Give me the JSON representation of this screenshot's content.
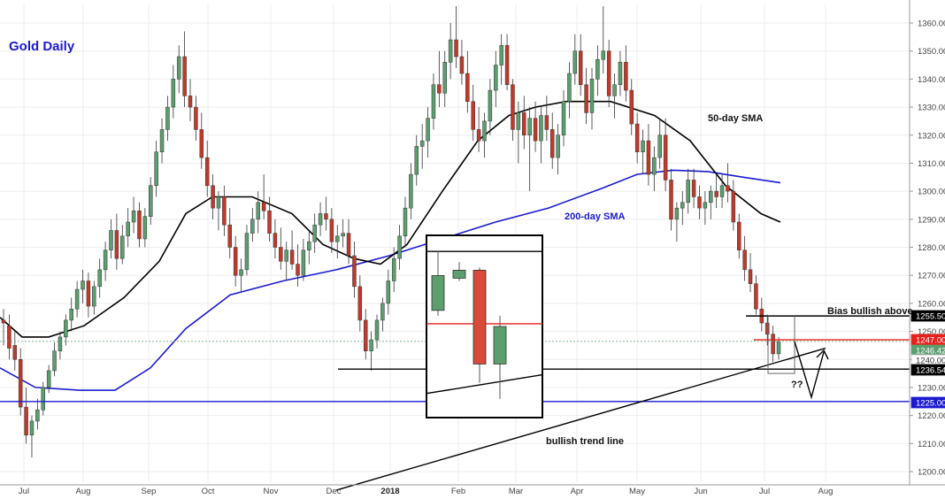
{
  "chart_data": {
    "type": "candlestick",
    "title": "Gold Daily",
    "ylim": [
      1195,
      1365
    ],
    "y_ticks": [
      1200,
      1210,
      1220,
      1230,
      1240,
      1250,
      1260,
      1270,
      1280,
      1290,
      1300,
      1310,
      1320,
      1330,
      1340,
      1350,
      1360
    ],
    "x_labels": [
      "Jul",
      "Aug",
      "Sep",
      "Oct",
      "Nov",
      "Dec",
      "2018",
      "Feb",
      "Mar",
      "Apr",
      "May",
      "Jun",
      "Jul",
      "Aug"
    ],
    "series": [
      {
        "name": "50-day SMA",
        "color": "#000000",
        "points": [
          [
            0,
            1255
          ],
          [
            25,
            1248
          ],
          [
            55,
            1248
          ],
          [
            95,
            1252
          ],
          [
            140,
            1262
          ],
          [
            180,
            1275
          ],
          [
            210,
            1292
          ],
          [
            240,
            1298
          ],
          [
            285,
            1298
          ],
          [
            330,
            1292
          ],
          [
            365,
            1281
          ],
          [
            400,
            1276
          ],
          [
            430,
            1274
          ],
          [
            460,
            1281
          ],
          [
            500,
            1300
          ],
          [
            540,
            1318
          ],
          [
            575,
            1327
          ],
          [
            605,
            1330
          ],
          [
            640,
            1332
          ],
          [
            690,
            1332
          ],
          [
            740,
            1327
          ],
          [
            780,
            1318
          ],
          [
            820,
            1302
          ],
          [
            860,
            1292
          ],
          [
            882,
            1289
          ]
        ]
      },
      {
        "name": "200-day SMA",
        "color": "#1a1ad0",
        "points": [
          [
            0,
            1237
          ],
          [
            40,
            1230
          ],
          [
            90,
            1229
          ],
          [
            130,
            1229
          ],
          [
            170,
            1237
          ],
          [
            210,
            1251
          ],
          [
            260,
            1263
          ],
          [
            320,
            1268
          ],
          [
            380,
            1272
          ],
          [
            440,
            1277
          ],
          [
            500,
            1283
          ],
          [
            560,
            1289
          ],
          [
            620,
            1294
          ],
          [
            680,
            1301
          ],
          [
            720,
            1306
          ],
          [
            760,
            1307.5
          ],
          [
            800,
            1307
          ],
          [
            840,
            1305
          ],
          [
            882,
            1303
          ]
        ]
      }
    ],
    "candles": [
      [
        1254,
        1258,
        1245,
        1253
      ],
      [
        1252,
        1256,
        1240,
        1244
      ],
      [
        1245,
        1250,
        1236,
        1240
      ],
      [
        1240,
        1244,
        1220,
        1223
      ],
      [
        1223,
        1230,
        1210,
        1213
      ],
      [
        1213,
        1220,
        1205,
        1218
      ],
      [
        1218,
        1226,
        1215,
        1222
      ],
      [
        1222,
        1232,
        1220,
        1230
      ],
      [
        1230,
        1238,
        1228,
        1236
      ],
      [
        1236,
        1246,
        1234,
        1243
      ],
      [
        1243,
        1250,
        1240,
        1248
      ],
      [
        1248,
        1256,
        1245,
        1254
      ],
      [
        1254,
        1262,
        1250,
        1258
      ],
      [
        1258,
        1268,
        1255,
        1265
      ],
      [
        1265,
        1272,
        1260,
        1268
      ],
      [
        1268,
        1271,
        1255,
        1259
      ],
      [
        1259,
        1268,
        1256,
        1266
      ],
      [
        1266,
        1276,
        1262,
        1272
      ],
      [
        1272,
        1282,
        1268,
        1279
      ],
      [
        1279,
        1290,
        1276,
        1286
      ],
      [
        1286,
        1292,
        1272,
        1276
      ],
      [
        1276,
        1288,
        1274,
        1284
      ],
      [
        1284,
        1294,
        1280,
        1289
      ],
      [
        1289,
        1298,
        1285,
        1293
      ],
      [
        1293,
        1296,
        1280,
        1283
      ],
      [
        1283,
        1294,
        1280,
        1291
      ],
      [
        1291,
        1305,
        1288,
        1302
      ],
      [
        1302,
        1318,
        1298,
        1314
      ],
      [
        1314,
        1326,
        1310,
        1322
      ],
      [
        1322,
        1334,
        1318,
        1330
      ],
      [
        1330,
        1345,
        1326,
        1340
      ],
      [
        1340,
        1352,
        1335,
        1348
      ],
      [
        1348,
        1357,
        1330,
        1334
      ],
      [
        1334,
        1340,
        1325,
        1330
      ],
      [
        1330,
        1334,
        1318,
        1322
      ],
      [
        1322,
        1328,
        1308,
        1312
      ],
      [
        1312,
        1318,
        1298,
        1302
      ],
      [
        1302,
        1306,
        1290,
        1294
      ],
      [
        1294,
        1300,
        1286,
        1298
      ],
      [
        1298,
        1302,
        1284,
        1288
      ],
      [
        1288,
        1294,
        1276,
        1280
      ],
      [
        1280,
        1284,
        1266,
        1270
      ],
      [
        1270,
        1276,
        1264,
        1272
      ],
      [
        1272,
        1288,
        1270,
        1285
      ],
      [
        1285,
        1294,
        1282,
        1290
      ],
      [
        1290,
        1300,
        1285,
        1296
      ],
      [
        1296,
        1306,
        1290,
        1293
      ],
      [
        1293,
        1298,
        1282,
        1285
      ],
      [
        1285,
        1290,
        1276,
        1280
      ],
      [
        1280,
        1287,
        1272,
        1275
      ],
      [
        1275,
        1282,
        1268,
        1279
      ],
      [
        1279,
        1286,
        1272,
        1274
      ],
      [
        1274,
        1281,
        1266,
        1270
      ],
      [
        1270,
        1283,
        1268,
        1279
      ],
      [
        1279,
        1286,
        1274,
        1282
      ],
      [
        1282,
        1292,
        1278,
        1288
      ],
      [
        1288,
        1296,
        1284,
        1292
      ],
      [
        1292,
        1298,
        1286,
        1290
      ],
      [
        1290,
        1294,
        1278,
        1282
      ],
      [
        1282,
        1288,
        1276,
        1284
      ],
      [
        1284,
        1290,
        1280,
        1285
      ],
      [
        1285,
        1290,
        1274,
        1277
      ],
      [
        1277,
        1282,
        1262,
        1266
      ],
      [
        1266,
        1270,
        1250,
        1254
      ],
      [
        1254,
        1258,
        1240,
        1243
      ],
      [
        1243,
        1250,
        1236,
        1247
      ],
      [
        1247,
        1256,
        1244,
        1254
      ],
      [
        1254,
        1262,
        1250,
        1260
      ],
      [
        1260,
        1272,
        1256,
        1268
      ],
      [
        1268,
        1280,
        1264,
        1276
      ],
      [
        1276,
        1288,
        1272,
        1284
      ],
      [
        1284,
        1298,
        1280,
        1294
      ],
      [
        1294,
        1310,
        1290,
        1306
      ],
      [
        1306,
        1320,
        1302,
        1316
      ],
      [
        1316,
        1324,
        1308,
        1318
      ],
      [
        1318,
        1330,
        1312,
        1326
      ],
      [
        1326,
        1342,
        1322,
        1338
      ],
      [
        1338,
        1350,
        1330,
        1335
      ],
      [
        1335,
        1350,
        1330,
        1346
      ],
      [
        1346,
        1360,
        1340,
        1354
      ],
      [
        1354,
        1366,
        1344,
        1348
      ],
      [
        1348,
        1354,
        1338,
        1342
      ],
      [
        1342,
        1350,
        1328,
        1332
      ],
      [
        1332,
        1338,
        1318,
        1322
      ],
      [
        1322,
        1330,
        1314,
        1318
      ],
      [
        1318,
        1328,
        1312,
        1325
      ],
      [
        1325,
        1340,
        1320,
        1336
      ],
      [
        1336,
        1350,
        1330,
        1345
      ],
      [
        1345,
        1356,
        1338,
        1352
      ],
      [
        1352,
        1356,
        1336,
        1338
      ],
      [
        1338,
        1340,
        1318,
        1322
      ],
      [
        1322,
        1332,
        1310,
        1328
      ],
      [
        1328,
        1334,
        1315,
        1320
      ],
      [
        1320,
        1330,
        1300,
        1326
      ],
      [
        1326,
        1332,
        1314,
        1318
      ],
      [
        1318,
        1330,
        1310,
        1327
      ],
      [
        1327,
        1334,
        1318,
        1322
      ],
      [
        1322,
        1328,
        1308,
        1312
      ],
      [
        1312,
        1324,
        1306,
        1320
      ],
      [
        1320,
        1336,
        1316,
        1332
      ],
      [
        1332,
        1346,
        1326,
        1342
      ],
      [
        1342,
        1356,
        1338,
        1350
      ],
      [
        1350,
        1356,
        1334,
        1338
      ],
      [
        1338,
        1344,
        1324,
        1328
      ],
      [
        1328,
        1344,
        1322,
        1340
      ],
      [
        1340,
        1352,
        1334,
        1347
      ],
      [
        1347,
        1366,
        1342,
        1350
      ],
      [
        1350,
        1354,
        1330,
        1334
      ],
      [
        1334,
        1342,
        1326,
        1338
      ],
      [
        1338,
        1350,
        1334,
        1346
      ],
      [
        1346,
        1352,
        1332,
        1336
      ],
      [
        1336,
        1340,
        1320,
        1324
      ],
      [
        1324,
        1328,
        1310,
        1314
      ],
      [
        1314,
        1322,
        1306,
        1318
      ],
      [
        1318,
        1324,
        1302,
        1306
      ],
      [
        1306,
        1316,
        1300,
        1312
      ],
      [
        1312,
        1326,
        1308,
        1320
      ],
      [
        1320,
        1326,
        1300,
        1304
      ],
      [
        1304,
        1308,
        1286,
        1290
      ],
      [
        1290,
        1296,
        1282,
        1294
      ],
      [
        1294,
        1300,
        1288,
        1296
      ],
      [
        1296,
        1308,
        1292,
        1304
      ],
      [
        1304,
        1308,
        1294,
        1298
      ],
      [
        1298,
        1302,
        1290,
        1294
      ],
      [
        1294,
        1300,
        1288,
        1296
      ],
      [
        1296,
        1302,
        1290,
        1300
      ],
      [
        1300,
        1306,
        1294,
        1298
      ],
      [
        1298,
        1306,
        1294,
        1302
      ],
      [
        1302,
        1310,
        1296,
        1300
      ],
      [
        1300,
        1304,
        1286,
        1289
      ],
      [
        1289,
        1292,
        1276,
        1279
      ],
      [
        1279,
        1284,
        1268,
        1272
      ],
      [
        1272,
        1278,
        1264,
        1267
      ],
      [
        1267,
        1270,
        1256,
        1258
      ],
      [
        1258,
        1262,
        1250,
        1253
      ],
      [
        1253,
        1256,
        1245,
        1249
      ],
      [
        1249,
        1252,
        1239,
        1242
      ],
      [
        1242,
        1248,
        1240,
        1246.42
      ]
    ],
    "horizontal_levels": [
      {
        "value": 1255.5,
        "label": "1255.50",
        "color": "#000000"
      },
      {
        "value": 1247.0,
        "label": "1247.00",
        "color": "#e8211c"
      },
      {
        "value": 1246.42,
        "label": "1246.42",
        "color": "#5c9e6e"
      },
      {
        "value": 1240.0,
        "label": "1240.00",
        "color": "#444444"
      },
      {
        "value": 1236.54,
        "label": "1236.54",
        "color": "#000000"
      },
      {
        "value": 1225.0,
        "label": "1225.00",
        "color": "#1a1ad0"
      }
    ],
    "annotations": {
      "sma50": "50-day SMA",
      "sma200": "200-day SMA",
      "bias": "Bias bullish above",
      "trend": "bullish trend line",
      "question": "??"
    },
    "inset": {
      "candles": [
        [
          1255,
          1277,
          1253,
          1268
        ],
        [
          1267,
          1273,
          1266,
          1270
        ],
        [
          1270,
          1271,
          1228,
          1235
        ],
        [
          1235,
          1253,
          1222,
          1249
        ]
      ],
      "red_level": 1250,
      "trend_from": 1224,
      "trend_to": 1231
    }
  },
  "colors": {
    "bull": "#5c9e6e",
    "bear": "#c0392b",
    "grid": "#eeeeee",
    "axis": "#999999",
    "title": "#1a1ad0",
    "inset_bull": "#5c9e6e",
    "inset_bear": "#d94a3a"
  }
}
